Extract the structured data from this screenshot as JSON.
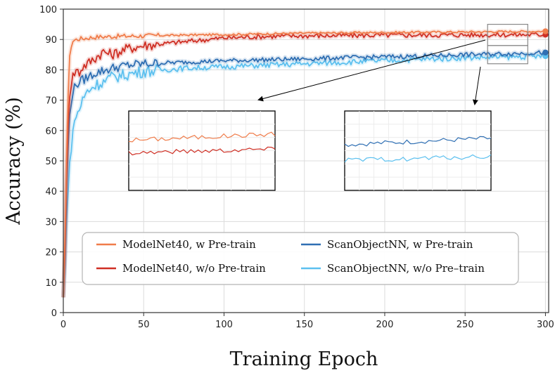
{
  "chart_data": {
    "type": "line",
    "title": "",
    "xlabel": "Training Epoch",
    "ylabel": "Accuracy (%)",
    "xlim": [
      0,
      302
    ],
    "ylim": [
      0,
      100
    ],
    "xticks": [
      0,
      50,
      100,
      150,
      200,
      250,
      300
    ],
    "yticks": [
      0,
      10,
      20,
      30,
      40,
      50,
      60,
      70,
      80,
      90,
      100
    ],
    "grid": true,
    "legend_position": "lower-center",
    "series": [
      {
        "name": "ModelNet40,  w Pre-train",
        "color": "#f07c4a",
        "final": 92.7,
        "x": [
          0,
          1,
          2,
          3,
          4,
          5,
          6,
          8,
          10,
          15,
          20,
          30,
          40,
          50,
          60,
          70,
          80,
          100,
          120,
          140,
          150,
          175,
          200,
          220,
          250,
          275,
          300
        ],
        "values": [
          5,
          25,
          50,
          72,
          84,
          88,
          89.5,
          90,
          90.2,
          90.5,
          90.8,
          91,
          91.1,
          91.2,
          91.3,
          91.4,
          91.5,
          91.6,
          91.8,
          92,
          92.1,
          92.2,
          92.3,
          92.4,
          92.5,
          92.6,
          92.7
        ]
      },
      {
        "name": "ModelNet40,  w/o Pre-train",
        "color": "#cf2f24",
        "final": 91.6,
        "x": [
          0,
          1,
          2,
          3,
          4,
          5,
          6,
          8,
          10,
          12,
          15,
          20,
          25,
          30,
          40,
          50,
          60,
          70,
          80,
          90,
          100,
          125,
          150,
          175,
          200,
          250,
          300
        ],
        "values": [
          5,
          20,
          45,
          62,
          72,
          76,
          78,
          80,
          79,
          81,
          82,
          84,
          86,
          85,
          87,
          88,
          88.5,
          89,
          89.5,
          90,
          90.5,
          91,
          91.2,
          91.3,
          91.4,
          91.5,
          91.6
        ]
      },
      {
        "name": "ScanObjectNN,  w Pre-train",
        "color": "#2f6fb3",
        "final": 85.7,
        "x": [
          0,
          1,
          2,
          3,
          4,
          5,
          6,
          8,
          10,
          15,
          20,
          30,
          40,
          50,
          75,
          100,
          125,
          150,
          175,
          200,
          225,
          250,
          275,
          300
        ],
        "values": [
          5,
          18,
          40,
          55,
          65,
          70,
          73,
          75,
          76,
          77.5,
          79,
          80.5,
          81.5,
          82,
          82.5,
          83,
          83.3,
          83.6,
          84,
          84.3,
          84.6,
          85,
          85.3,
          85.7
        ]
      },
      {
        "name": "ScanObjectNN,  w/o Pre–train",
        "color": "#5cc0ef",
        "final": 84.5,
        "x": [
          0,
          1,
          2,
          3,
          4,
          5,
          6,
          8,
          10,
          12,
          15,
          20,
          25,
          30,
          40,
          50,
          75,
          100,
          125,
          150,
          175,
          200,
          225,
          250,
          275,
          300
        ],
        "values": [
          5,
          15,
          30,
          40,
          48,
          55,
          60,
          65,
          67,
          70,
          73,
          75,
          76,
          77.5,
          78.5,
          79.5,
          80.5,
          81,
          81.5,
          82,
          82.5,
          83,
          83.5,
          84,
          84.2,
          84.5
        ]
      }
    ],
    "annotations": [
      {
        "type": "zoom-inset",
        "target_series": [
          "ModelNet40,  w Pre-train",
          "ModelNet40,  w/o Pre-train"
        ],
        "x_range": [
          264,
          289
        ],
        "y_range": [
          88,
          95
        ]
      },
      {
        "type": "zoom-inset",
        "target_series": [
          "ScanObjectNN,  w Pre-train",
          "ScanObjectNN,  w/o Pre–train"
        ],
        "x_range": [
          264,
          289
        ],
        "y_range": [
          82,
          88
        ]
      }
    ]
  }
}
